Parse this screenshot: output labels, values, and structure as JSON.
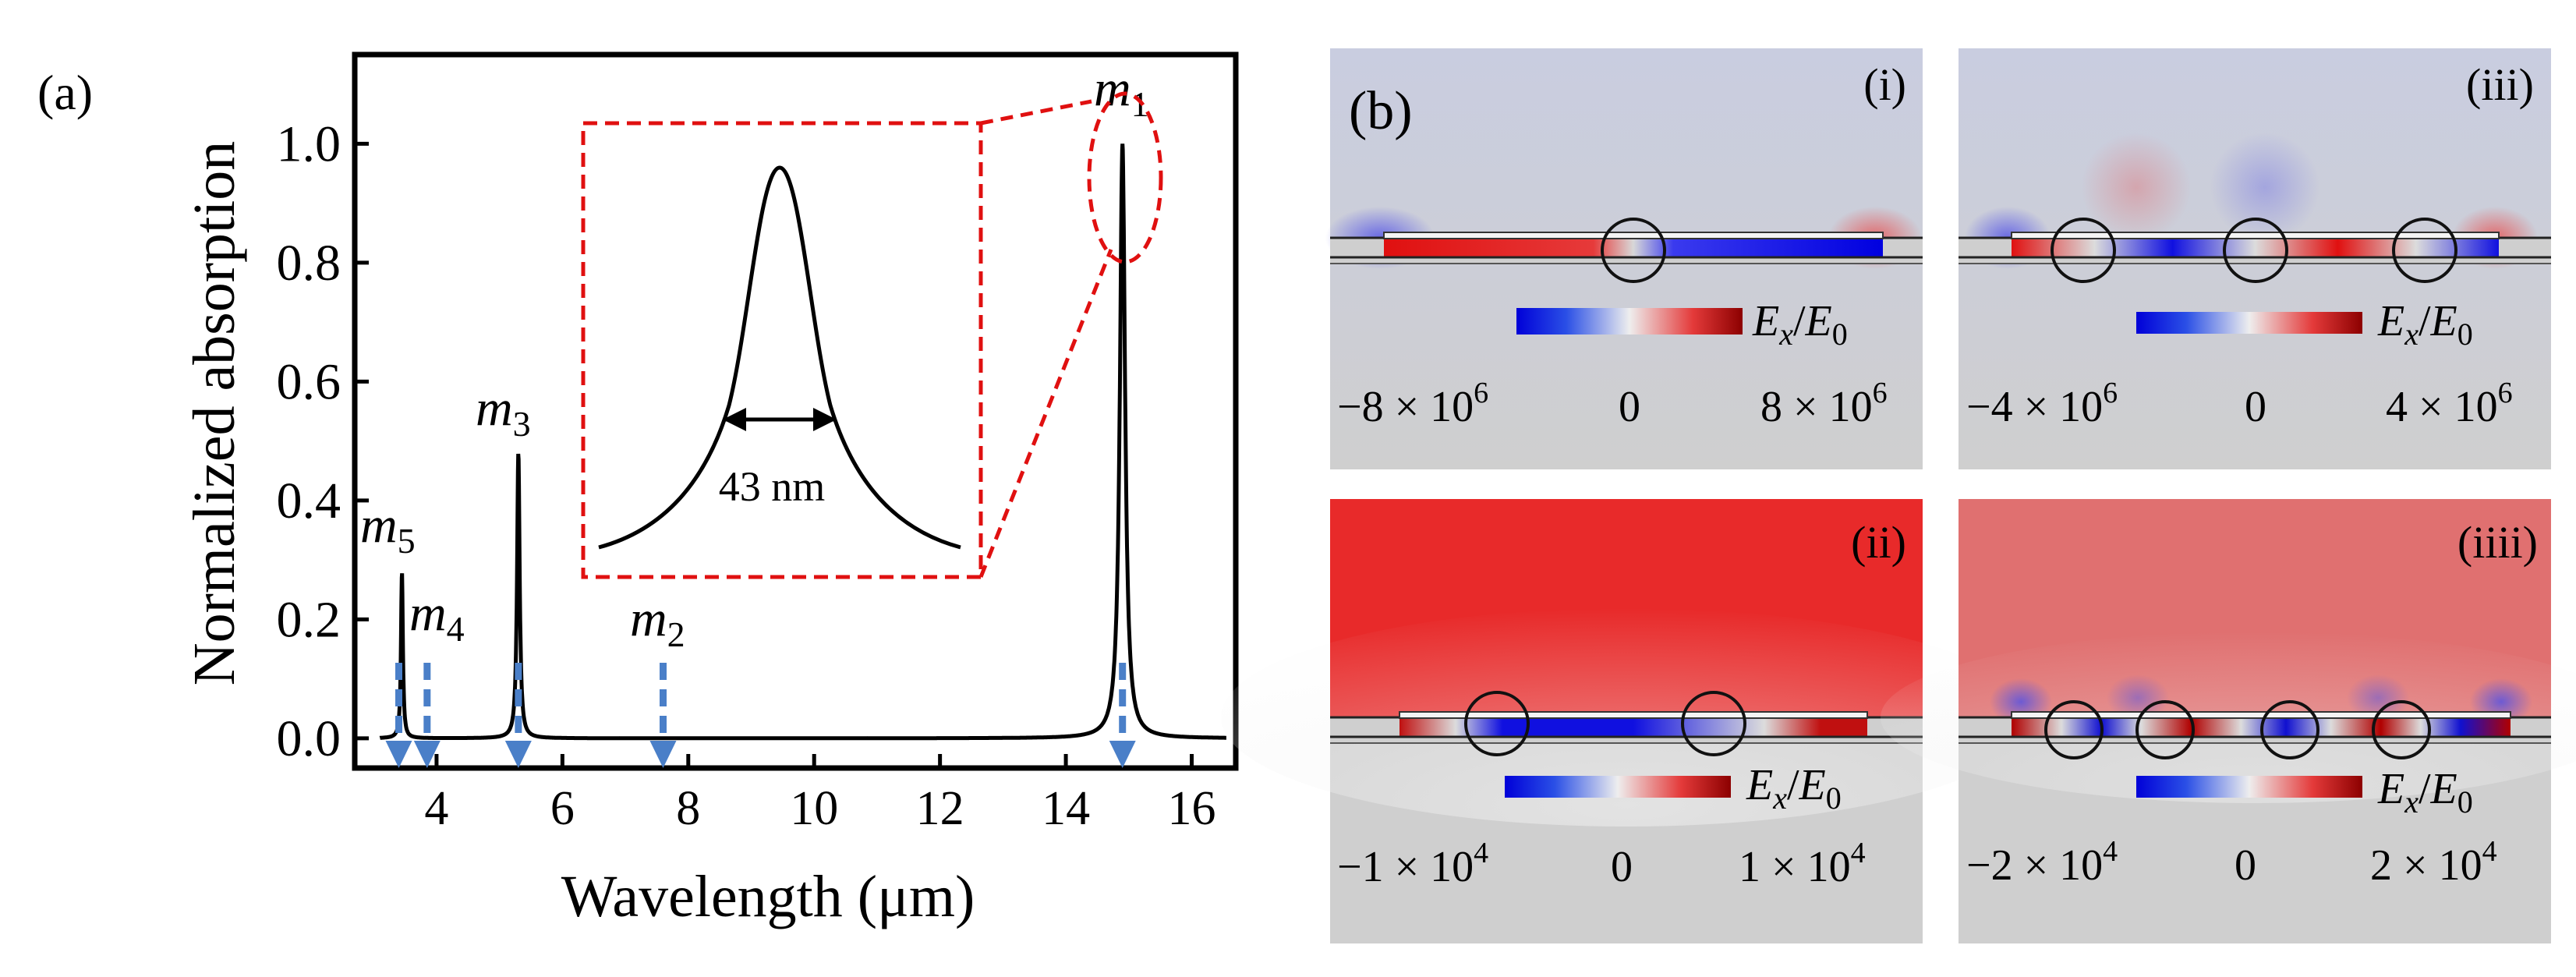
{
  "panel_a": {
    "label": "(a)",
    "xlabel": "Wavelength (μm)",
    "ylabel": "Normalized absorption",
    "inset_label": "43 nm",
    "modes": [
      {
        "base": "m",
        "sub": "1"
      },
      {
        "base": "m",
        "sub": "2"
      },
      {
        "base": "m",
        "sub": "3"
      },
      {
        "base": "m",
        "sub": "4"
      },
      {
        "base": "m",
        "sub": "5"
      }
    ]
  },
  "panel_b": {
    "label": "(b)",
    "colorbar_label": {
      "num": "E",
      "num_sub": "x",
      "den": "E",
      "den_sub": "0"
    },
    "panels": [
      {
        "tag": "(i)",
        "min": "−8 × 10",
        "min_exp": "6",
        "zero": "0",
        "max": "8 × 10",
        "max_exp": "6"
      },
      {
        "tag": "(iii)",
        "min": "−4 × 10",
        "min_exp": "6",
        "zero": "0",
        "max": "4 × 10",
        "max_exp": "6"
      },
      {
        "tag": "(ii)",
        "min": "−1 × 10",
        "min_exp": "4",
        "zero": "0",
        "max": "1 × 10",
        "max_exp": "4"
      },
      {
        "tag": "(iiii)",
        "min": "−2 × 10",
        "min_exp": "4",
        "zero": "0",
        "max": "2 × 10",
        "max_exp": "4"
      }
    ]
  },
  "chart_data": {
    "type": "line",
    "xlabel": "Wavelength (μm)",
    "ylabel": "Normalized absorption",
    "xlim": [
      2.7,
      16.7
    ],
    "ylim": [
      -0.05,
      1.15
    ],
    "xticks": [
      4,
      6,
      8,
      10,
      12,
      14,
      16
    ],
    "yticks": [
      0.0,
      0.2,
      0.4,
      0.6,
      0.8,
      1.0
    ],
    "ytick_labels": [
      "0.0",
      "0.2",
      "0.4",
      "0.6",
      "0.8",
      "1.0"
    ],
    "baseline": 0.0,
    "peaks": [
      {
        "mode": "m1",
        "x": 14.9,
        "y": 1.0
      },
      {
        "mode": "m3",
        "x": 5.3,
        "y": 0.48
      },
      {
        "mode": "m5",
        "x": 3.45,
        "y": 0.28
      }
    ],
    "mode_markers": [
      {
        "mode": "m5",
        "x": 3.4
      },
      {
        "mode": "m4",
        "x": 3.85
      },
      {
        "mode": "m3",
        "x": 5.3
      },
      {
        "mode": "m2",
        "x": 7.6
      },
      {
        "mode": "m1",
        "x": 14.9
      }
    ],
    "inset": {
      "fwhm_nm": 43,
      "peak": "m1"
    }
  }
}
